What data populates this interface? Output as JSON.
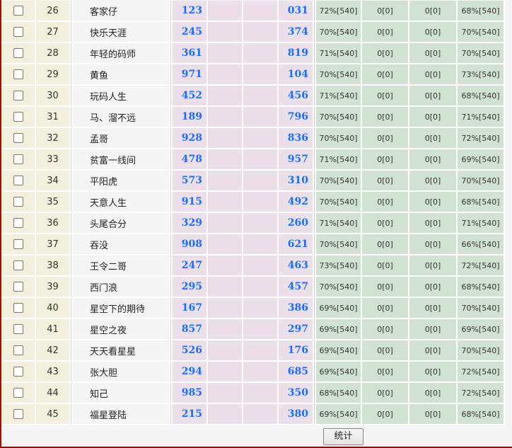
{
  "rows": [
    {
      "no": "26",
      "name": "客家仔",
      "a": "123",
      "b": "",
      "c": "",
      "d": "031",
      "g1": "72%[540]",
      "g2": "0[0]",
      "g3": "0[0]",
      "g4": "68%[540]"
    },
    {
      "no": "27",
      "name": "快乐天涯",
      "a": "245",
      "b": "",
      "c": "",
      "d": "374",
      "g1": "70%[540]",
      "g2": "0[0]",
      "g3": "0[0]",
      "g4": "70%[540]"
    },
    {
      "no": "28",
      "name": "年轻的码师",
      "a": "361",
      "b": "",
      "c": "",
      "d": "819",
      "g1": "71%[540]",
      "g2": "0[0]",
      "g3": "0[0]",
      "g4": "70%[540]"
    },
    {
      "no": "29",
      "name": "黄鱼",
      "a": "971",
      "b": "",
      "c": "",
      "d": "104",
      "g1": "70%[540]",
      "g2": "0[0]",
      "g3": "0[0]",
      "g4": "73%[540]"
    },
    {
      "no": "30",
      "name": "玩码人生",
      "a": "452",
      "b": "",
      "c": "",
      "d": "456",
      "g1": "71%[540]",
      "g2": "0[0]",
      "g3": "0[0]",
      "g4": "68%[540]"
    },
    {
      "no": "31",
      "name": "马、溜不远",
      "a": "189",
      "b": "",
      "c": "",
      "d": "796",
      "g1": "70%[540]",
      "g2": "0[0]",
      "g3": "0[0]",
      "g4": "71%[540]"
    },
    {
      "no": "32",
      "name": "孟哥",
      "a": "928",
      "b": "",
      "c": "",
      "d": "836",
      "g1": "70%[540]",
      "g2": "0[0]",
      "g3": "0[0]",
      "g4": "72%[540]"
    },
    {
      "no": "33",
      "name": "贫富一线间",
      "a": "478",
      "b": "",
      "c": "",
      "d": "957",
      "g1": "71%[540]",
      "g2": "0[0]",
      "g3": "0[0]",
      "g4": "69%[540]"
    },
    {
      "no": "34",
      "name": "平阳虎",
      "a": "573",
      "b": "",
      "c": "",
      "d": "310",
      "g1": "70%[540]",
      "g2": "0[0]",
      "g3": "0[0]",
      "g4": "70%[540]"
    },
    {
      "no": "35",
      "name": "天意人生",
      "a": "915",
      "b": "",
      "c": "",
      "d": "492",
      "g1": "70%[540]",
      "g2": "0[0]",
      "g3": "0[0]",
      "g4": "68%[540]"
    },
    {
      "no": "36",
      "name": "头尾合分",
      "a": "329",
      "b": "",
      "c": "",
      "d": "260",
      "g1": "71%[540]",
      "g2": "0[0]",
      "g3": "0[0]",
      "g4": "71%[540]"
    },
    {
      "no": "37",
      "name": "吞没",
      "a": "908",
      "b": "",
      "c": "",
      "d": "621",
      "g1": "70%[540]",
      "g2": "0[0]",
      "g3": "0[0]",
      "g4": "66%[540]"
    },
    {
      "no": "38",
      "name": "王令二哥",
      "a": "247",
      "b": "",
      "c": "",
      "d": "463",
      "g1": "73%[540]",
      "g2": "0[0]",
      "g3": "0[0]",
      "g4": "72%[540]"
    },
    {
      "no": "39",
      "name": "西门浪",
      "a": "295",
      "b": "",
      "c": "",
      "d": "457",
      "g1": "70%[540]",
      "g2": "0[0]",
      "g3": "0[0]",
      "g4": "68%[540]"
    },
    {
      "no": "40",
      "name": "星空下的期待",
      "a": "167",
      "b": "",
      "c": "",
      "d": "386",
      "g1": "69%[540]",
      "g2": "0[0]",
      "g3": "0[0]",
      "g4": "70%[540]"
    },
    {
      "no": "41",
      "name": "星空之夜",
      "a": "857",
      "b": "",
      "c": "",
      "d": "297",
      "g1": "69%[540]",
      "g2": "0[0]",
      "g3": "0[0]",
      "g4": "69%[540]"
    },
    {
      "no": "42",
      "name": "天天看星星",
      "a": "526",
      "b": "",
      "c": "",
      "d": "176",
      "g1": "69%[540]",
      "g2": "0[0]",
      "g3": "0[0]",
      "g4": "70%[540]"
    },
    {
      "no": "43",
      "name": "张大胆",
      "a": "294",
      "b": "",
      "c": "",
      "d": "685",
      "g1": "69%[540]",
      "g2": "0[0]",
      "g3": "0[0]",
      "g4": "72%[540]"
    },
    {
      "no": "44",
      "name": "知己",
      "a": "985",
      "b": "",
      "c": "",
      "d": "350",
      "g1": "68%[540]",
      "g2": "0[0]",
      "g3": "0[0]",
      "g4": "72%[540]"
    },
    {
      "no": "45",
      "name": "福星登陆",
      "a": "215",
      "b": "",
      "c": "",
      "d": "380",
      "g1": "69%[540]",
      "g2": "0[0]",
      "g3": "0[0]",
      "g4": "68%[540]"
    }
  ],
  "footer": {
    "stat_button": "统计"
  },
  "colors": {
    "frame_border": "#b00000",
    "number_text": "#1a6eff",
    "green_cell": "#d2e2d2",
    "pink_cell": "#ebe0ea",
    "index_cell": "#f2f0dc"
  }
}
